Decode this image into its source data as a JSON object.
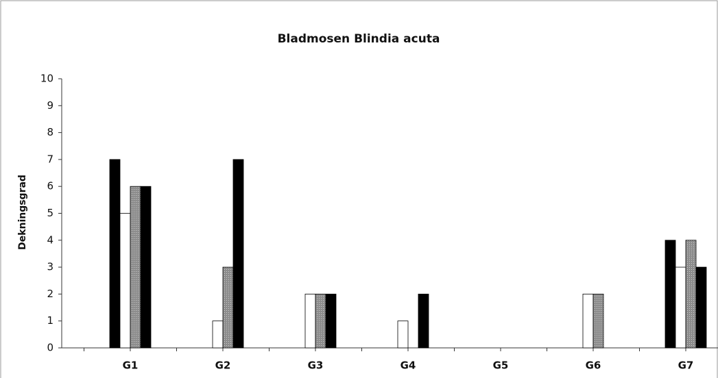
{
  "chart_data": {
    "type": "bar",
    "title": "Bladmosen Blindia acuta",
    "ylabel": "Dekningsgrad",
    "categories": [
      "G1",
      "G2",
      "G3",
      "G4",
      "G5",
      "G6",
      "G7"
    ],
    "series": [
      {
        "color": "#000000",
        "values": [
          7,
          0,
          0,
          0,
          0,
          0,
          4
        ]
      },
      {
        "color": "#ffffff",
        "values": [
          5,
          1,
          2,
          1,
          0,
          2,
          3
        ]
      },
      {
        "color": "#8c8c8c",
        "values": [
          6,
          3,
          2,
          0,
          0,
          2,
          4
        ]
      },
      {
        "color": "#000000",
        "values": [
          6,
          7,
          2,
          2,
          0,
          0,
          3
        ]
      }
    ],
    "ylim": [
      0,
      10
    ],
    "yticks": [
      0,
      1,
      2,
      3,
      4,
      5,
      6,
      7,
      8,
      9,
      10
    ],
    "grid": false
  }
}
